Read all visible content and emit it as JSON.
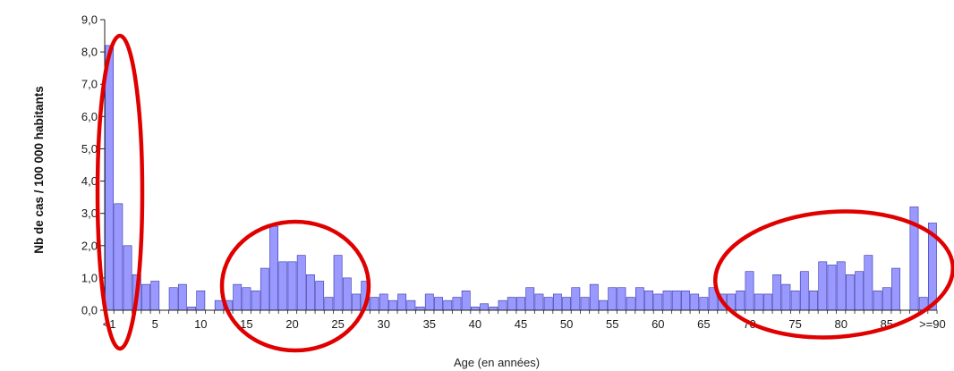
{
  "chart_data": {
    "type": "bar",
    "ylabel": "Nb de cas / 100 000 habitants",
    "xlabel": "Age (en années)",
    "ylim": [
      0,
      9
    ],
    "yticks": [
      "0,0",
      "1,0",
      "2,0",
      "3,0",
      "4,0",
      "5,0",
      "6,0",
      "7,0",
      "8,0",
      "9,0"
    ],
    "xtick_labels": [
      {
        "index": 0,
        "label": "<1"
      },
      {
        "index": 5,
        "label": "5"
      },
      {
        "index": 10,
        "label": "10"
      },
      {
        "index": 15,
        "label": "15"
      },
      {
        "index": 20,
        "label": "20"
      },
      {
        "index": 25,
        "label": "25"
      },
      {
        "index": 30,
        "label": "30"
      },
      {
        "index": 35,
        "label": "35"
      },
      {
        "index": 40,
        "label": "40"
      },
      {
        "index": 45,
        "label": "45"
      },
      {
        "index": 50,
        "label": "50"
      },
      {
        "index": 55,
        "label": "55"
      },
      {
        "index": 60,
        "label": "60"
      },
      {
        "index": 65,
        "label": "65"
      },
      {
        "index": 70,
        "label": "70"
      },
      {
        "index": 75,
        "label": "75"
      },
      {
        "index": 80,
        "label": "80"
      },
      {
        "index": 85,
        "label": "85"
      },
      {
        "index": 90,
        "label": ">=90"
      }
    ],
    "values": [
      8.2,
      3.3,
      2.0,
      1.1,
      0.8,
      0.9,
      0.0,
      0.7,
      0.8,
      0.1,
      0.6,
      0.0,
      0.3,
      0.3,
      0.8,
      0.7,
      0.6,
      1.3,
      2.6,
      1.5,
      1.5,
      1.7,
      1.1,
      0.9,
      0.4,
      1.7,
      1.0,
      0.5,
      0.9,
      0.4,
      0.5,
      0.3,
      0.5,
      0.3,
      0.1,
      0.5,
      0.4,
      0.3,
      0.4,
      0.6,
      0.1,
      0.2,
      0.1,
      0.3,
      0.4,
      0.4,
      0.7,
      0.5,
      0.4,
      0.5,
      0.4,
      0.7,
      0.4,
      0.8,
      0.3,
      0.7,
      0.7,
      0.4,
      0.7,
      0.6,
      0.5,
      0.6,
      0.6,
      0.6,
      0.5,
      0.4,
      0.7,
      0.5,
      0.5,
      0.6,
      1.2,
      0.5,
      0.5,
      1.1,
      0.8,
      0.6,
      1.2,
      0.6,
      1.5,
      1.4,
      1.5,
      1.1,
      1.2,
      1.7,
      0.6,
      0.7,
      1.3,
      0.0,
      3.2,
      0.4,
      2.7
    ],
    "bar_color": "#9999ff",
    "bar_edge_color": "#3333aa",
    "highlight_color": "#e00000",
    "grid": false,
    "legend": "none"
  }
}
